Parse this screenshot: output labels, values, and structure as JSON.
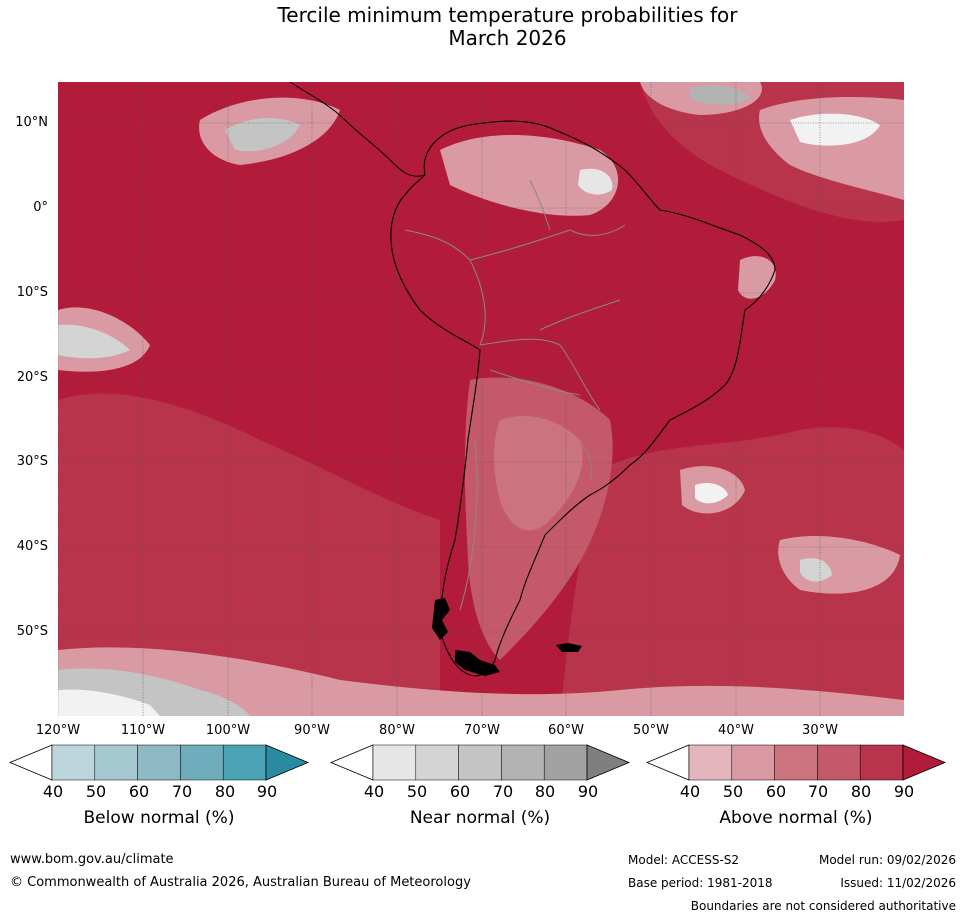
{
  "title": {
    "line1": "Tercile minimum temperature probabilities for",
    "line2": "March 2026"
  },
  "map": {
    "lat_labels": [
      "10°N",
      "0°",
      "10°S",
      "20°S",
      "30°S",
      "40°S",
      "50°S"
    ],
    "lon_labels": [
      "120°W",
      "110°W",
      "100°W",
      "90°W",
      "80°W",
      "70°W",
      "60°W",
      "50°W",
      "40°W",
      "30°W"
    ],
    "dominant_category": "Above normal",
    "dominant_probability": "90"
  },
  "colorbars": [
    {
      "id": "below",
      "title": "Below normal (%)",
      "ticks": [
        "40",
        "50",
        "60",
        "70",
        "80",
        "90"
      ],
      "colors": [
        "#ffffff",
        "#bcd6dc",
        "#a6c8d0",
        "#8db9c5",
        "#6fadbc",
        "#4ba2b4",
        "#2b8ba3"
      ]
    },
    {
      "id": "near",
      "title": "Near normal (%)",
      "ticks": [
        "40",
        "50",
        "60",
        "70",
        "80",
        "90"
      ],
      "colors": [
        "#ffffff",
        "#e6e6e6",
        "#d4d4d4",
        "#c4c4c4",
        "#b3b3b3",
        "#a2a2a2",
        "#7f7f7f"
      ]
    },
    {
      "id": "above",
      "title": "Above normal (%)",
      "ticks": [
        "40",
        "50",
        "60",
        "70",
        "80",
        "90"
      ],
      "colors": [
        "#ffffff",
        "#e3b6bd",
        "#d99aa3",
        "#cb7480",
        "#c45a69",
        "#b8344a",
        "#b21c3a"
      ]
    }
  ],
  "footer": {
    "url": "www.bom.gov.au/climate",
    "copyright": "© Commonwealth of Australia 2026, Australian Bureau of Meteorology",
    "model": "Model: ACCESS-S2",
    "model_run": "Model run: 09/02/2026",
    "base_period": "Base period: 1981-2018",
    "issued": "Issued: 11/02/2026",
    "disclaimer": "Boundaries are not considered authoritative"
  }
}
